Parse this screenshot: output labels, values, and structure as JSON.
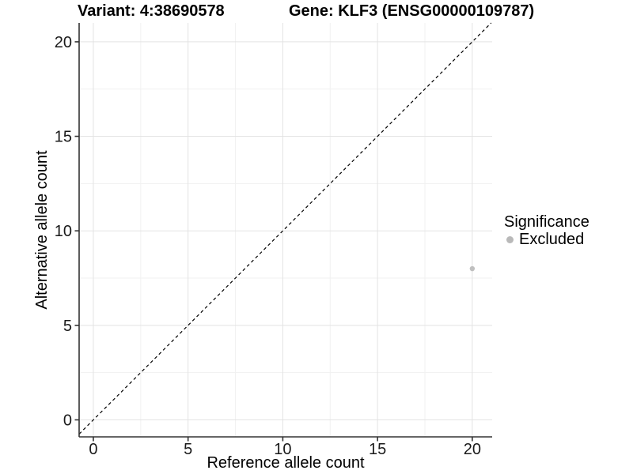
{
  "chart_data": {
    "type": "scatter",
    "title_left": "Variant: 4:38690578",
    "title_right": "Gene: KLF3 (ENSG00000109787)",
    "xlabel": "Reference allele count",
    "ylabel": "Alternative allele count",
    "x_ticks": [
      0,
      5,
      10,
      15,
      20
    ],
    "y_ticks": [
      0,
      5,
      10,
      15,
      20
    ],
    "x_minor_ticks": [
      2.5,
      7.5,
      12.5,
      17.5
    ],
    "y_minor_ticks": [
      2.5,
      7.5,
      12.5,
      17.5
    ],
    "xlim": [
      -0.75,
      21.05
    ],
    "ylim": [
      -0.9,
      21.0
    ],
    "grid": "major+minor",
    "points": [
      {
        "x": 20,
        "y": 8,
        "series": "Excluded"
      }
    ],
    "identity_line": {
      "slope": 1,
      "intercept": 0,
      "style": "dashed"
    },
    "legend": {
      "title": "Significance",
      "position": "right",
      "entries": [
        {
          "label": "Excluded",
          "marker": "circle",
          "color": "#b9b9b9"
        }
      ]
    },
    "colors": {
      "point": "#bfbfbf",
      "grid_major": "#e3e3e3",
      "grid_minor": "#f1f1f1",
      "axis_line": "#333333",
      "tick_text": "#1a1a1a",
      "dashed_line": "#000000"
    }
  }
}
